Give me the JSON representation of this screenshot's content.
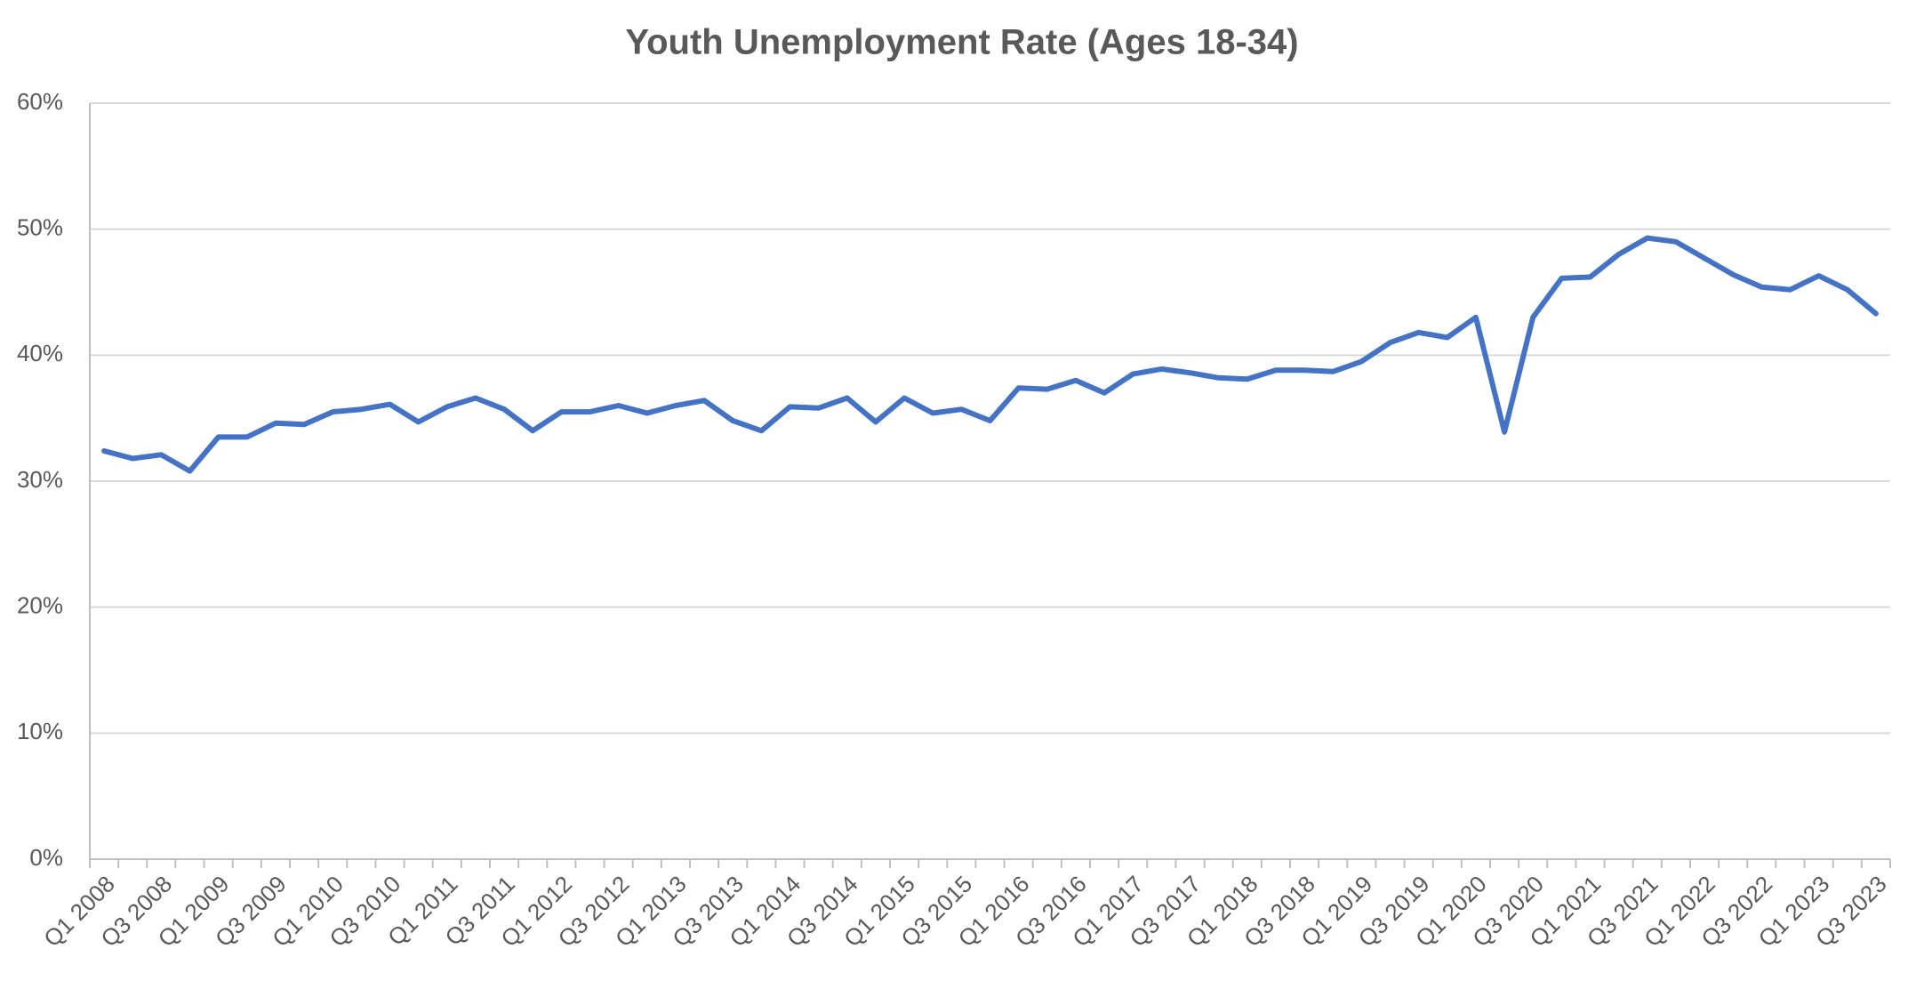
{
  "chart_data": {
    "type": "line",
    "title": "Youth Unemployment Rate (Ages 18-34)",
    "categories": [
      "Q1 2008",
      null,
      "Q3 2008",
      null,
      "Q1 2009",
      null,
      "Q3 2009",
      null,
      "Q1 2010",
      null,
      "Q3 2010",
      null,
      "Q1 2011",
      null,
      "Q3 2011",
      null,
      "Q1 2012",
      null,
      "Q3 2012",
      null,
      "Q1 2013",
      null,
      "Q3 2013",
      null,
      "Q1 2014",
      null,
      "Q3 2014",
      null,
      "Q1 2015",
      null,
      "Q3 2015",
      null,
      "Q1 2016",
      null,
      "Q3 2016",
      null,
      "Q1 2017",
      null,
      "Q3 2017",
      null,
      "Q1 2018",
      null,
      "Q3 2018",
      null,
      "Q1 2019",
      null,
      "Q3 2019",
      null,
      "Q1 2020",
      null,
      "Q3 2020",
      null,
      "Q1 2021",
      null,
      "Q3 2021",
      null,
      "Q1 2022",
      null,
      "Q3 2022",
      null,
      "Q1 2023",
      null,
      "Q3 2023"
    ],
    "series": [
      {
        "color": "#4472c4",
        "values": [
          32.4,
          31.8,
          32.1,
          30.8,
          33.5,
          33.5,
          34.6,
          34.5,
          35.5,
          35.7,
          36.1,
          34.7,
          35.9,
          36.6,
          35.7,
          34.0,
          35.5,
          35.5,
          36.0,
          35.4,
          36.0,
          36.4,
          34.8,
          34.0,
          35.9,
          35.8,
          36.6,
          34.7,
          36.6,
          35.4,
          35.7,
          34.8,
          37.4,
          37.3,
          38.0,
          37.0,
          38.5,
          38.9,
          38.6,
          38.2,
          38.1,
          38.8,
          38.8,
          38.7,
          39.5,
          41.0,
          41.8,
          41.4,
          43.0,
          33.9,
          43.0,
          46.1,
          46.2,
          48.0,
          49.3,
          49.0,
          47.7,
          46.4,
          45.4,
          45.2,
          46.3,
          45.2,
          43.3
        ]
      }
    ],
    "ylim": [
      0,
      60
    ],
    "yticks": [
      {
        "value": 0,
        "label": "0%"
      },
      {
        "value": 10,
        "label": "10%"
      },
      {
        "value": 20,
        "label": "20%"
      },
      {
        "value": 30,
        "label": "30%"
      },
      {
        "value": 40,
        "label": "40%"
      },
      {
        "value": 50,
        "label": "50%"
      },
      {
        "value": 60,
        "label": "60%"
      }
    ],
    "grid": true
  }
}
